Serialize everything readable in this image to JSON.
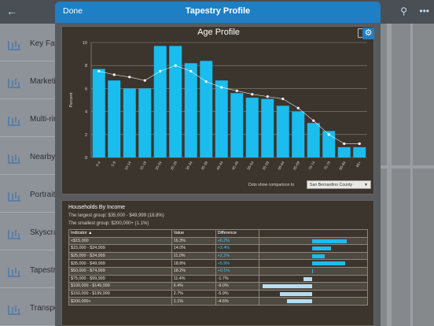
{
  "background": {
    "back_icon": "chevron-left-icon",
    "list": [
      {
        "label": "Key Fac",
        "icon": "bar-chart-icon"
      },
      {
        "label": "Marketin",
        "icon": "bar-chart-icon"
      },
      {
        "label": "Multi-rin",
        "icon": "bar-chart-icon"
      },
      {
        "label": "Nearby",
        "icon": "bar-chart-icon"
      },
      {
        "label": "Portrait",
        "icon": "bar-chart-icon"
      },
      {
        "label": "Skyscra",
        "icon": "bar-chart-icon"
      },
      {
        "label": "Tapestry",
        "icon": "bar-chart-icon"
      },
      {
        "label": "Transpo",
        "icon": "bar-chart-icon"
      }
    ]
  },
  "modal": {
    "done_label": "Done",
    "title": "Tapestry Profile"
  },
  "chart_data": {
    "type": "bar",
    "title": "Age Profile",
    "ylabel": "Percent",
    "ylim": [
      0,
      10
    ],
    "yticks": [
      0,
      2,
      4,
      6,
      8,
      10
    ],
    "grid": true,
    "categories": [
      "0-4",
      "5-9",
      "10-14",
      "15-19",
      "20-24",
      "25-29",
      "30-34",
      "35-39",
      "40-44",
      "45-49",
      "50-54",
      "55-59",
      "60-64",
      "65-69",
      "70-74",
      "75-79",
      "80-84",
      "85+"
    ],
    "series": [
      {
        "values": [
          7.7,
          6.7,
          6.0,
          6.0,
          9.7,
          9.7,
          8.2,
          8.4,
          6.7,
          5.6,
          5.2,
          5.1,
          4.5,
          4.0,
          3.0,
          2.3,
          0.9,
          0.9
        ],
        "color": "#1bbcee"
      },
      {
        "values": [
          7.5,
          7.2,
          7.0,
          6.7,
          7.5,
          8.0,
          7.5,
          6.6,
          6.1,
          5.8,
          5.5,
          5.3,
          5.1,
          4.3,
          3.2,
          2.0,
          1.2,
          1.2
        ],
        "color": "#ffffff"
      }
    ],
    "comparison_label": "Dots show comparison to",
    "comparison_value": "San Bernardino County",
    "gear_icon": "gear-icon"
  },
  "income": {
    "title": "Households By Income",
    "largest": "The largest group: $35,000 - $49,999 (18.8%)",
    "smallest": "The smallest group: $200,000+ (1.1%)",
    "headers": {
      "indicator": "Indicator ▲",
      "value": "Value",
      "difference": "Difference"
    },
    "rows": [
      {
        "indicator": "<$15,000",
        "value": "16.3%",
        "difference": "+6.2%",
        "diff_num": 6.2
      },
      {
        "indicator": "$15,000 - $24,999",
        "value": "14.0%",
        "difference": "+3.4%",
        "diff_num": 3.4
      },
      {
        "indicator": "$25,000 - $34,999",
        "value": "11.0%",
        "difference": "+2.2%",
        "diff_num": 2.2
      },
      {
        "indicator": "$35,000 - $49,999",
        "value": "18.8%",
        "difference": "+5.9%",
        "diff_num": 5.9
      },
      {
        "indicator": "$50,000 - $74,999",
        "value": "18.2%",
        "difference": "+0.1%",
        "diff_num": 0.1
      },
      {
        "indicator": "$75,000 - $99,999",
        "value": "11.4%",
        "difference": "-1.7%",
        "diff_num": -1.7
      },
      {
        "indicator": "$100,000 - $149,999",
        "value": "6.4%",
        "difference": "-9.0%",
        "diff_num": -9.0
      },
      {
        "indicator": "$150,000 - $199,999",
        "value": "2.7%",
        "difference": "-5.9%",
        "diff_num": -5.9
      },
      {
        "indicator": "$200,000+",
        "value": "1.1%",
        "difference": "-4.6%",
        "diff_num": -4.6
      }
    ],
    "pos_color": "#1bbcee",
    "neg_color": "#b6dcef"
  }
}
